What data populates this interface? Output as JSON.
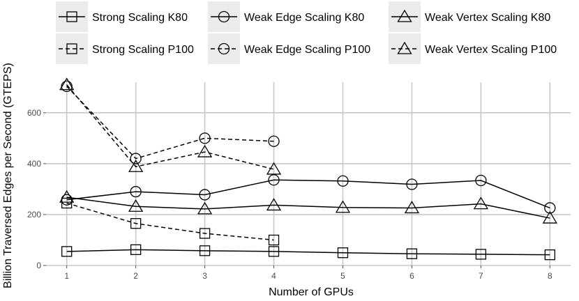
{
  "chart_data": {
    "type": "line",
    "x": [
      1,
      2,
      3,
      4,
      5,
      6,
      7,
      8
    ],
    "xlabel": "Number of GPUs",
    "ylabel": "Billion Traversed Edges per Second (GTEPS)",
    "xlim": [
      0.7,
      8.3
    ],
    "ylim": [
      0,
      720
    ],
    "xticks": [
      1,
      2,
      3,
      4,
      5,
      6,
      7,
      8
    ],
    "yticks": [
      0,
      200,
      400,
      600
    ],
    "legend_position": "top",
    "series": [
      {
        "name": "Strong Scaling K80",
        "marker": "square",
        "linestyle": "solid",
        "x": [
          1,
          2,
          3,
          4,
          5,
          6,
          7,
          8
        ],
        "values": [
          55,
          62,
          58,
          55,
          50,
          46,
          44,
          42
        ]
      },
      {
        "name": "Weak Edge Scaling K80",
        "marker": "circle",
        "linestyle": "solid",
        "x": [
          1,
          2,
          3,
          4,
          5,
          6,
          7,
          8
        ],
        "values": [
          258,
          290,
          278,
          336,
          332,
          319,
          334,
          226
        ]
      },
      {
        "name": "Weak Vertex Scaling K80",
        "marker": "triangle",
        "linestyle": "solid",
        "x": [
          1,
          2,
          3,
          4,
          5,
          6,
          7,
          8
        ],
        "values": [
          268,
          232,
          222,
          237,
          228,
          226,
          242,
          186
        ]
      },
      {
        "name": "Strong Scaling P100",
        "marker": "square",
        "linestyle": "dashed",
        "x": [
          1,
          2,
          3,
          4
        ],
        "values": [
          245,
          165,
          126,
          100
        ]
      },
      {
        "name": "Weak Edge Scaling P100",
        "marker": "circle",
        "linestyle": "dashed",
        "x": [
          1,
          2,
          3,
          4
        ],
        "values": [
          704,
          420,
          500,
          488
        ]
      },
      {
        "name": "Weak Vertex Scaling P100",
        "marker": "triangle",
        "linestyle": "dashed",
        "x": [
          1,
          2,
          3,
          4
        ],
        "values": [
          710,
          388,
          446,
          378
        ]
      }
    ]
  }
}
